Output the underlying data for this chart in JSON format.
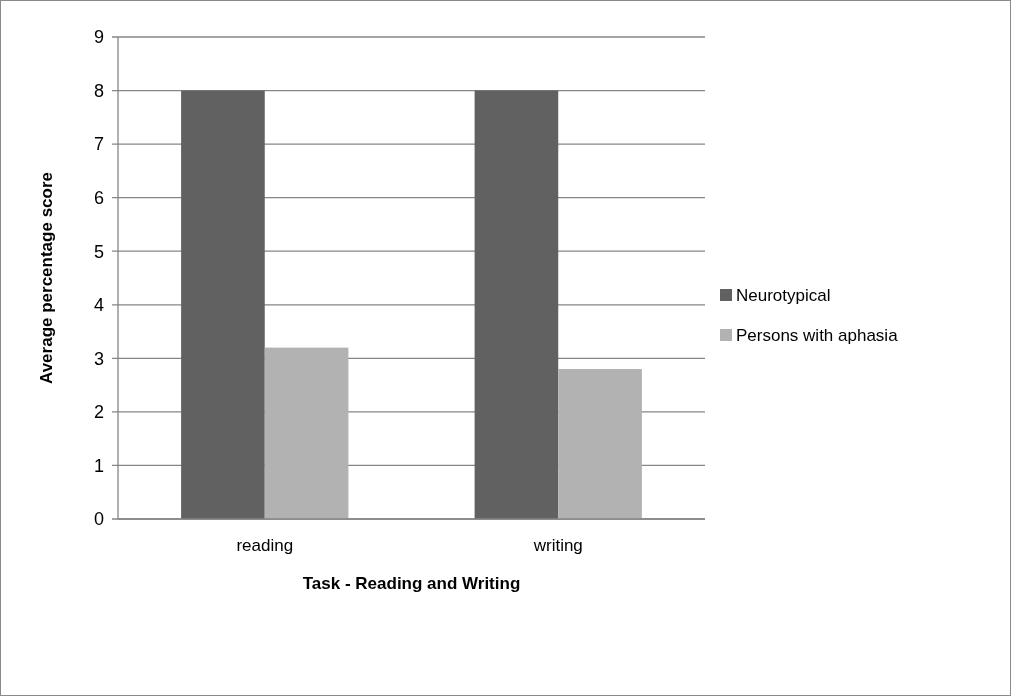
{
  "chart_data": {
    "type": "bar",
    "xlabel": "Task -  Reading and Writing",
    "ylabel": "Average percentage score",
    "categories": [
      "reading",
      "writing"
    ],
    "series": [
      {
        "name": "Neurotypical",
        "color": "#616161",
        "values": [
          8,
          8
        ]
      },
      {
        "name": "Persons with aphasia",
        "color": "#b2b2b2",
        "values": [
          3.2,
          2.8
        ]
      }
    ],
    "ylim": [
      0,
      9
    ],
    "yticks": [
      0,
      1,
      2,
      3,
      4,
      5,
      6,
      7,
      8,
      9
    ],
    "grid": "y",
    "legend": "right"
  }
}
